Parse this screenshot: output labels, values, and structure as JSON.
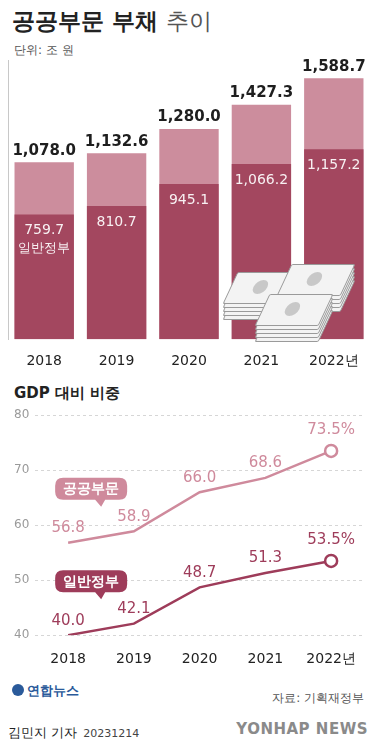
{
  "chart_data": [
    {
      "type": "bar",
      "title": "공공부문 부채 추이",
      "subtitle": "단위: 조 원",
      "categories": [
        "2018",
        "2019",
        "2020",
        "2021",
        "2022년"
      ],
      "stacked": false,
      "series": [
        {
          "color": "#cc8d9d",
          "values": [
            1078.0,
            1132.6,
            1280.0,
            1427.3,
            1588.7
          ],
          "value_labels": [
            "1,078.0",
            "1,132.6",
            "1,280.0",
            "1,427.3",
            "1,588.7"
          ]
        },
        {
          "name": "일반정부",
          "color": "#a3475f",
          "values": [
            759.7,
            810.7,
            945.1,
            1066.2,
            1157.2
          ],
          "value_labels": [
            "759.7",
            "810.7",
            "945.1",
            "1,066.2",
            "1,157.2"
          ]
        }
      ],
      "ylim": [
        0,
        1700
      ],
      "yticks": [],
      "grid": false,
      "data_labels": true,
      "tick_labels": "x"
    },
    {
      "type": "line",
      "title": "GDP 대비 비중",
      "categories": [
        "2018",
        "2019",
        "2020",
        "2021",
        "2022년"
      ],
      "series": [
        {
          "name": "공공부문",
          "color": "#cf8a9c",
          "values": [
            56.8,
            58.9,
            66.0,
            68.6,
            73.5
          ],
          "value_labels": [
            "56.8",
            "58.9",
            "66.0",
            "68.6",
            "73.5%"
          ]
        },
        {
          "name": "일반정부",
          "color": "#9e3c5a",
          "values": [
            40.0,
            42.1,
            48.7,
            51.3,
            53.5
          ],
          "value_labels": [
            "40.0",
            "42.1",
            "48.7",
            "51.3",
            "53.5%"
          ]
        }
      ],
      "ylim": [
        40,
        80
      ],
      "yticks": [
        40,
        50,
        60,
        70,
        80
      ],
      "grid": true,
      "data_labels": true
    }
  ],
  "footer": {
    "logo": "연합뉴스",
    "source": "자료: 기획재정부",
    "byline": "김민지 기자",
    "date": "20231214",
    "watermark": "YONHAP NEWS"
  }
}
